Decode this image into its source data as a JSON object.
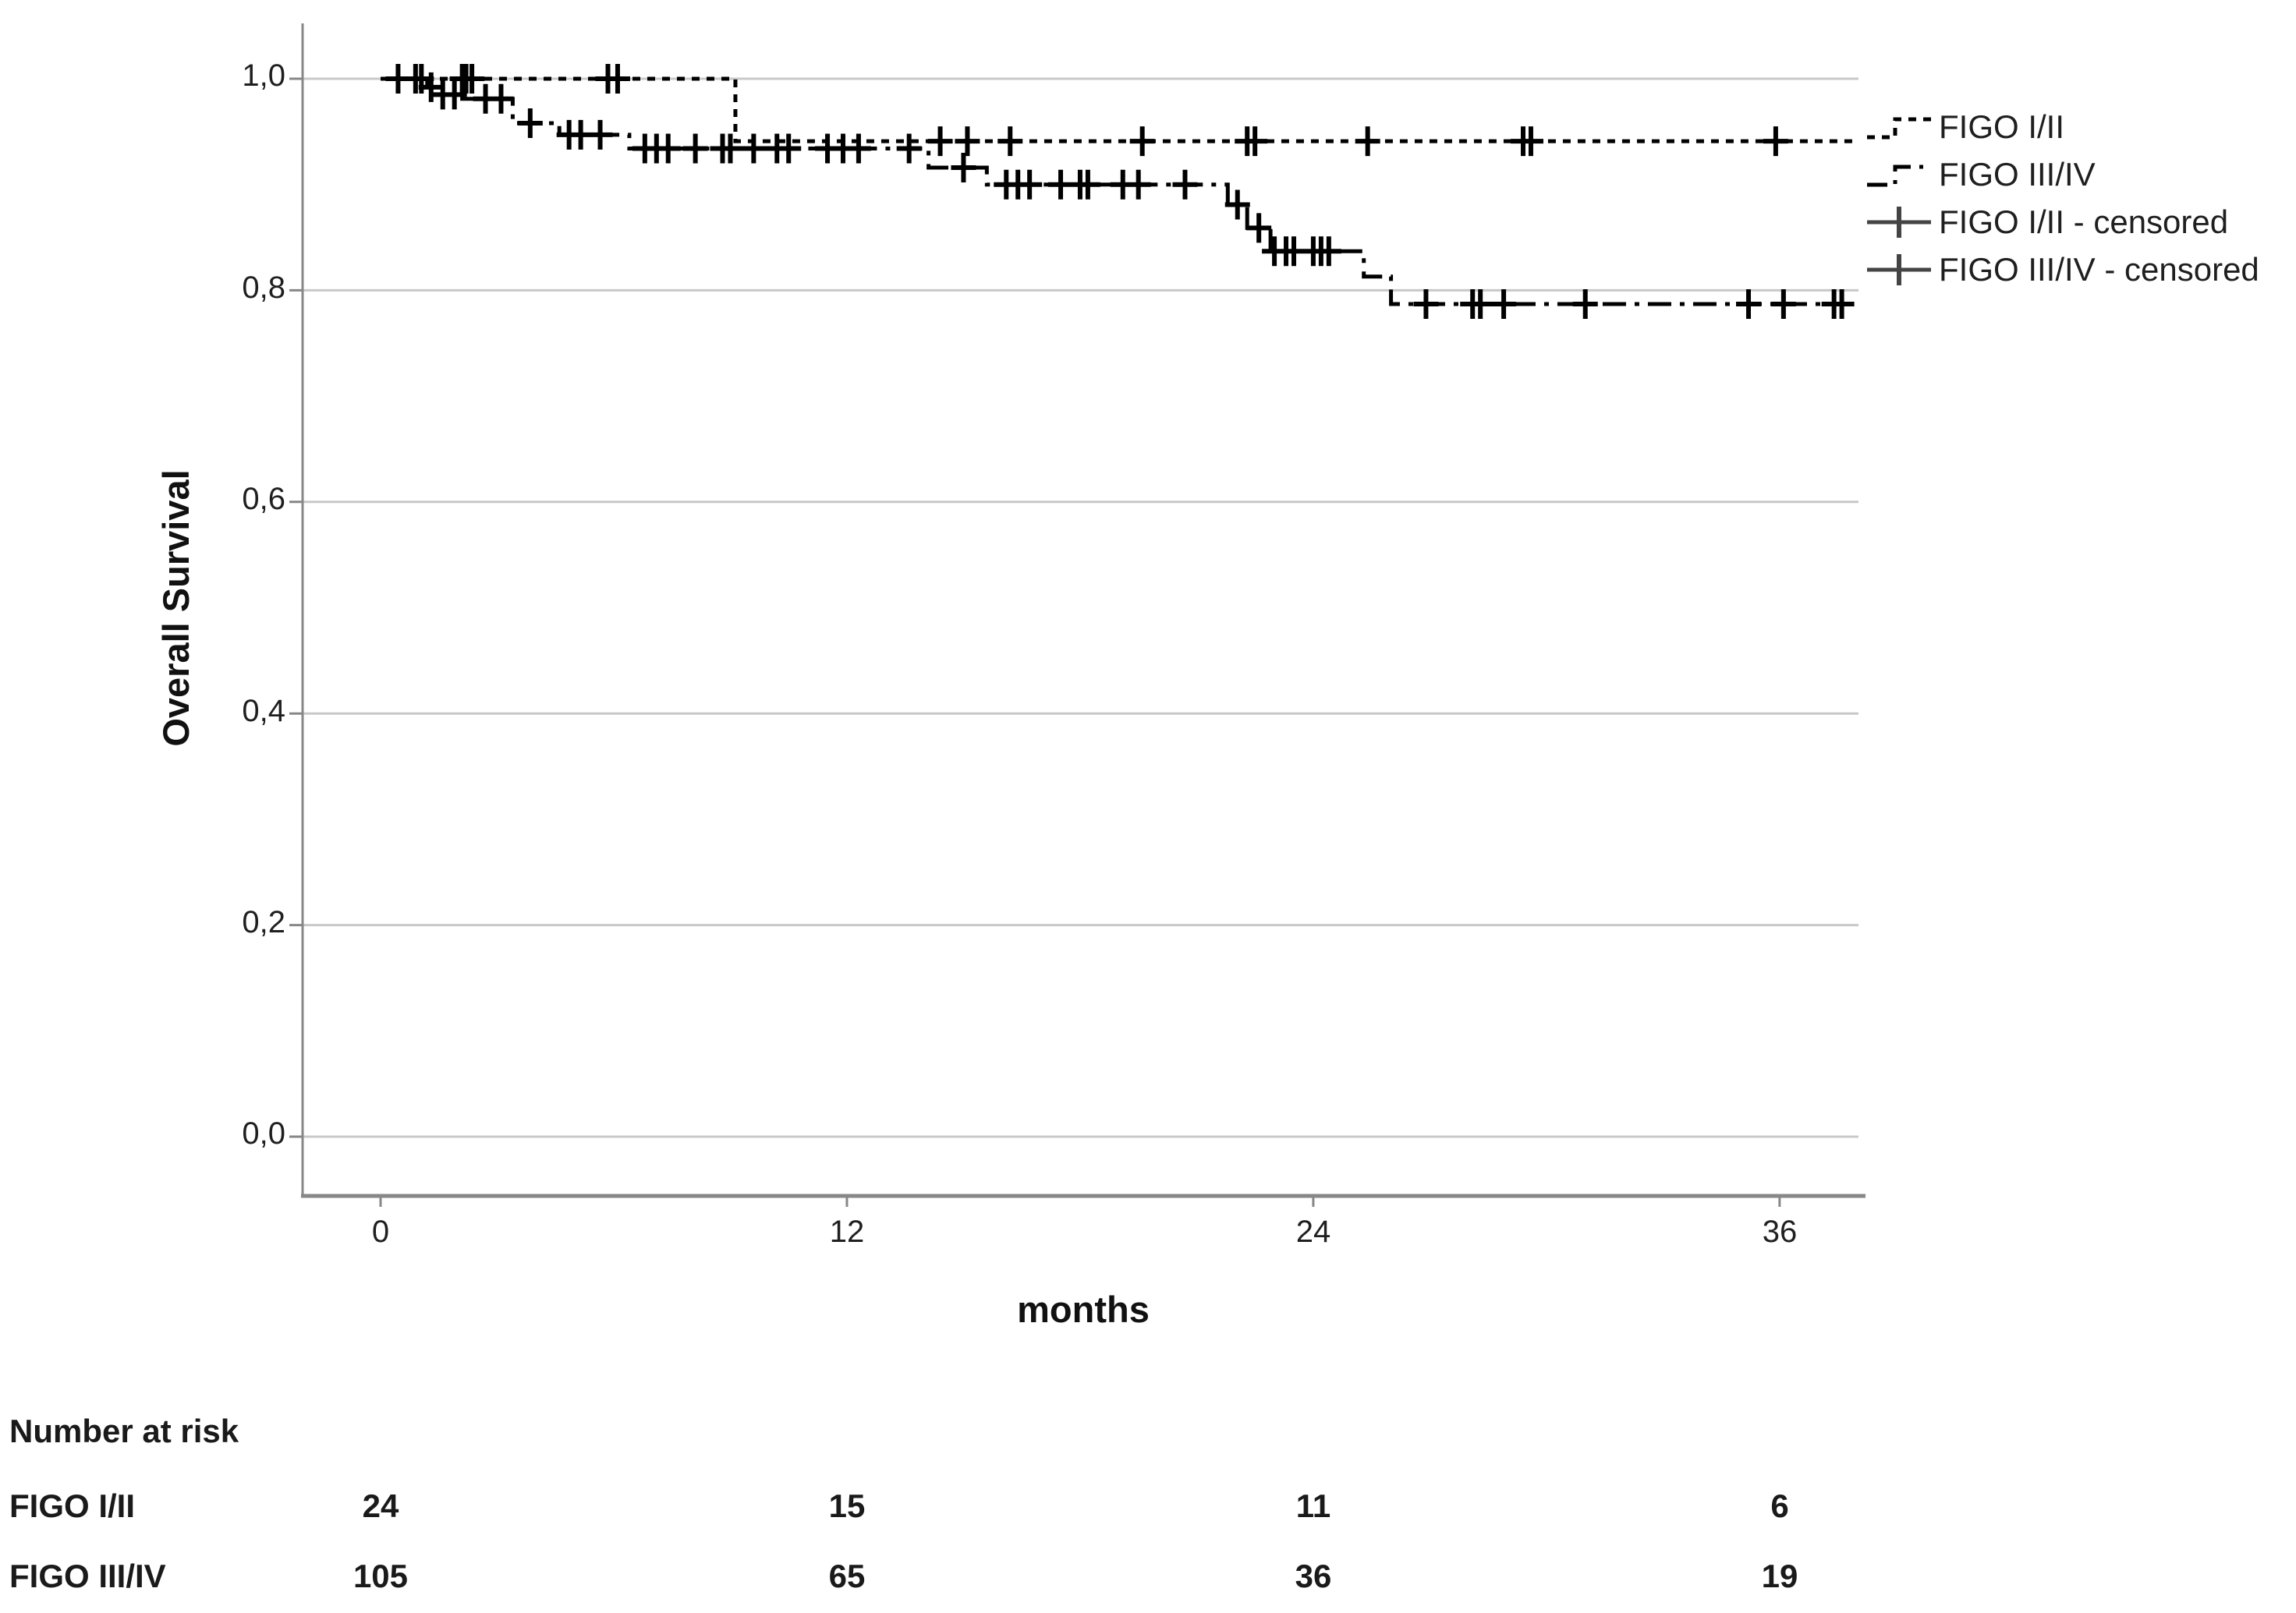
{
  "chart_data": {
    "type": "line",
    "subtype": "kaplan-meier-step",
    "title": "",
    "xlabel": "months",
    "ylabel": "Overall Survival",
    "x_ticks": [
      0,
      12,
      24,
      36
    ],
    "x_tick_labels": [
      "0",
      "12",
      "24",
      "36"
    ],
    "xlim": [
      0,
      38.0
    ],
    "y_ticks": [
      1.0,
      0.8,
      0.6,
      0.4,
      0.2,
      0.0
    ],
    "y_tick_labels": [
      "1,0",
      "0,8",
      "0,6",
      "0,4",
      "0,2",
      "0,0"
    ],
    "ylim": [
      0.0,
      1.0
    ],
    "grid": "horizontal",
    "legend_position": "right",
    "line_color": "#000000",
    "grid_color": "#c8c8c8",
    "axis_color": "#878787",
    "series": [
      {
        "name": "FIGO I/II",
        "style": "dashed",
        "steps": [
          [
            0,
            1.0
          ],
          [
            9.13,
            0.941
          ],
          [
            38.0,
            0.941
          ]
        ],
        "censored": [
          [
            0.45,
            1.0
          ],
          [
            0.9,
            1.0
          ],
          [
            1.05,
            1.0
          ],
          [
            2.1,
            1.0
          ],
          [
            2.2,
            1.0
          ],
          [
            2.35,
            1.0
          ],
          [
            5.85,
            1.0
          ],
          [
            6.1,
            1.0
          ],
          [
            14.4,
            0.941
          ],
          [
            15.1,
            0.941
          ],
          [
            16.2,
            0.941
          ],
          [
            19.6,
            0.941
          ],
          [
            22.3,
            0.941
          ],
          [
            22.5,
            0.941
          ],
          [
            25.4,
            0.941
          ],
          [
            29.4,
            0.941
          ],
          [
            29.6,
            0.941
          ],
          [
            35.9,
            0.941
          ]
        ]
      },
      {
        "name": "FIGO III/IV",
        "style": "dashdot",
        "steps": [
          [
            0,
            1.0
          ],
          [
            1.2,
            0.992
          ],
          [
            1.5,
            0.985
          ],
          [
            2.1,
            0.981
          ],
          [
            3.4,
            0.958
          ],
          [
            4.6,
            0.947
          ],
          [
            6.4,
            0.934
          ],
          [
            14.1,
            0.916
          ],
          [
            15.6,
            0.9
          ],
          [
            21.8,
            0.881
          ],
          [
            22.3,
            0.859
          ],
          [
            22.9,
            0.837
          ],
          [
            25.3,
            0.813
          ],
          [
            26.0,
            0.787
          ],
          [
            38.0,
            0.787
          ]
        ],
        "censored": [
          [
            1.3,
            0.992
          ],
          [
            1.6,
            0.985
          ],
          [
            1.9,
            0.985
          ],
          [
            2.7,
            0.981
          ],
          [
            3.1,
            0.981
          ],
          [
            3.85,
            0.958
          ],
          [
            4.85,
            0.947
          ],
          [
            5.15,
            0.947
          ],
          [
            5.65,
            0.947
          ],
          [
            6.8,
            0.934
          ],
          [
            7.1,
            0.934
          ],
          [
            7.4,
            0.934
          ],
          [
            8.1,
            0.934
          ],
          [
            8.8,
            0.934
          ],
          [
            9.0,
            0.934
          ],
          [
            9.6,
            0.934
          ],
          [
            10.2,
            0.934
          ],
          [
            10.5,
            0.934
          ],
          [
            11.5,
            0.934
          ],
          [
            11.9,
            0.934
          ],
          [
            12.3,
            0.934
          ],
          [
            13.6,
            0.934
          ],
          [
            15.0,
            0.916
          ],
          [
            16.1,
            0.9
          ],
          [
            16.4,
            0.9
          ],
          [
            16.7,
            0.9
          ],
          [
            17.5,
            0.9
          ],
          [
            18.0,
            0.9
          ],
          [
            18.2,
            0.9
          ],
          [
            19.1,
            0.9
          ],
          [
            19.5,
            0.9
          ],
          [
            20.7,
            0.9
          ],
          [
            22.05,
            0.881
          ],
          [
            22.6,
            0.859
          ],
          [
            23.0,
            0.837
          ],
          [
            23.3,
            0.837
          ],
          [
            23.5,
            0.837
          ],
          [
            24.0,
            0.837
          ],
          [
            24.2,
            0.837
          ],
          [
            24.4,
            0.837
          ],
          [
            26.9,
            0.787
          ],
          [
            28.1,
            0.787
          ],
          [
            28.3,
            0.787
          ],
          [
            28.9,
            0.787
          ],
          [
            31.0,
            0.787
          ],
          [
            35.2,
            0.787
          ],
          [
            36.1,
            0.787
          ],
          [
            37.4,
            0.787
          ],
          [
            37.6,
            0.787
          ]
        ]
      }
    ],
    "legend": [
      {
        "label": "FIGO I/II",
        "style": "dashed"
      },
      {
        "label": "FIGO III/IV",
        "style": "dashdot"
      },
      {
        "label": "FIGO I/II - censored",
        "style": "censored"
      },
      {
        "label": "FIGO III/IV - censored",
        "style": "censored"
      }
    ],
    "number_at_risk": {
      "header": "Number at risk",
      "time_points": [
        0,
        12,
        24,
        36
      ],
      "rows": [
        {
          "label": "FIGO I/II",
          "values": [
            "24",
            "15",
            "11",
            "6"
          ]
        },
        {
          "label": "FIGO III/IV",
          "values": [
            "105",
            "65",
            "36",
            "19"
          ]
        }
      ]
    }
  }
}
